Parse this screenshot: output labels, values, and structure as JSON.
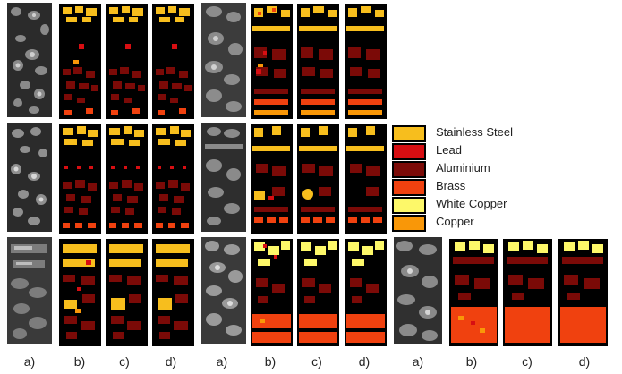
{
  "colors": {
    "stainless_steel": "#f7be1d",
    "lead": "#d70e12",
    "aluminium": "#7b0a07",
    "brass": "#f0410f",
    "white_copper": "#fdf869",
    "copper": "#f99708",
    "background": "#000000"
  },
  "legend": [
    {
      "label": "Stainless Steel",
      "color": "#f7be1d"
    },
    {
      "label": "Lead",
      "color": "#d70e12"
    },
    {
      "label": "Aluminium",
      "color": "#7b0a07"
    },
    {
      "label": "Brass",
      "color": "#f0410f"
    },
    {
      "label": "White Copper",
      "color": "#fdf869"
    },
    {
      "label": "Copper",
      "color": "#f99708"
    }
  ],
  "captions": [
    "a)",
    "b)",
    "c)",
    "d)",
    "a)",
    "b)",
    "c)",
    "d)",
    "a)",
    "b)",
    "c)",
    "d)"
  ]
}
